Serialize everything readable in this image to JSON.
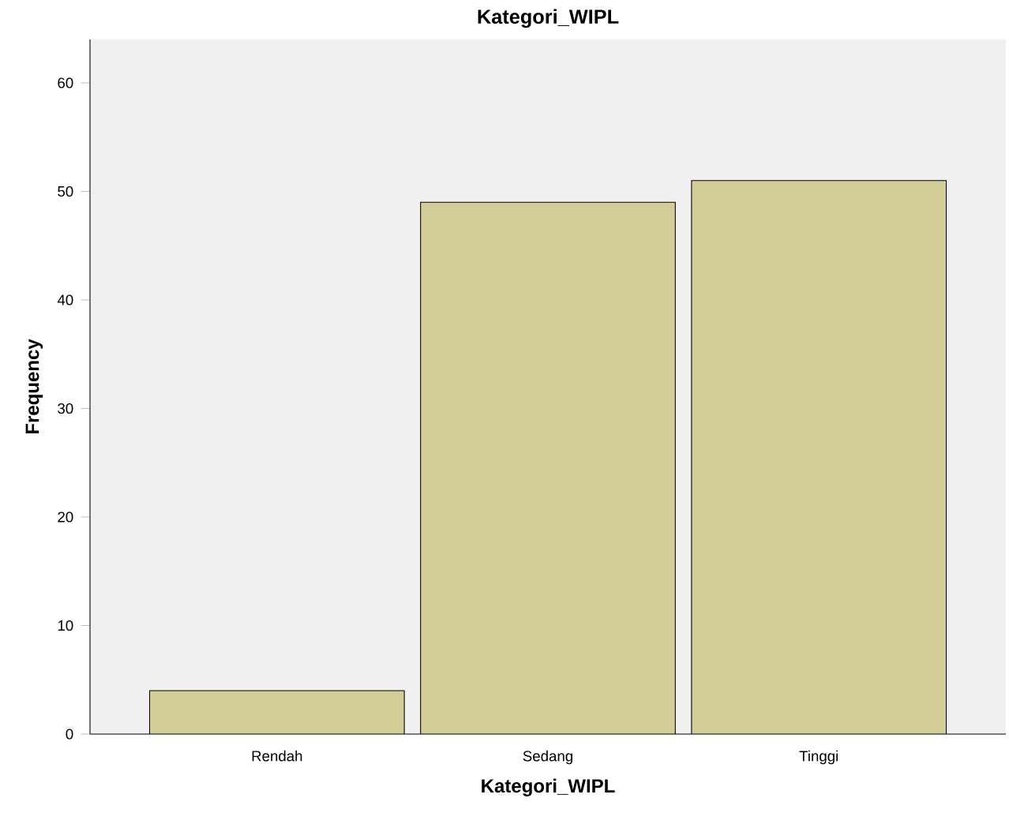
{
  "chart_data": {
    "type": "bar",
    "title": "Kategori_WIPL",
    "xlabel": "Kategori_WIPL",
    "ylabel": "Frequency",
    "categories": [
      "Rendah",
      "Sedang",
      "Tinggi"
    ],
    "values": [
      4,
      49,
      51
    ],
    "color": "#d3ce98",
    "ylim": [
      0,
      64
    ],
    "yticks": [
      0,
      10,
      20,
      30,
      40,
      50,
      60
    ],
    "grid": false
  }
}
